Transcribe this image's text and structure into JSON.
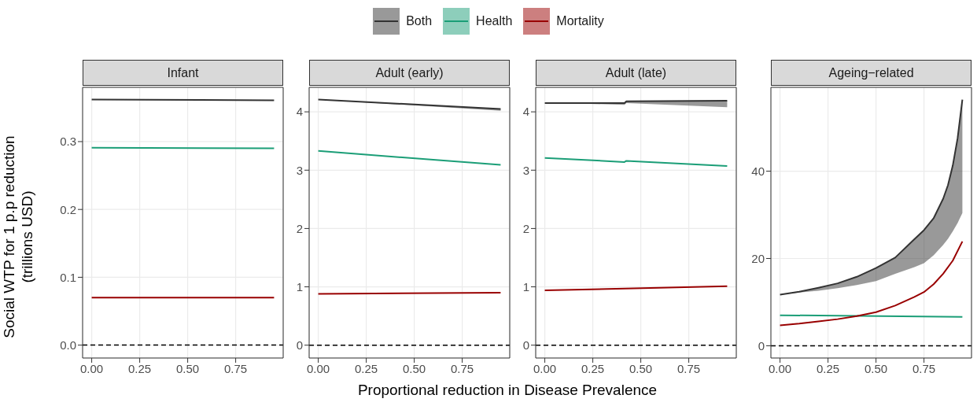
{
  "chart_data": [
    {
      "type": "line",
      "title": "Infant",
      "ylabel": "Social WTP for 1 p.p reduction\n(trillions USD)",
      "legend": "top",
      "grid": true,
      "xlim": [
        -0.0475,
        0.9975
      ],
      "xticks": [
        {
          "value": 0,
          "label": "0.00"
        },
        {
          "value": 0.25,
          "label": "0.25"
        },
        {
          "value": 0.5,
          "label": "0.50"
        },
        {
          "value": 0.75,
          "label": "0.75"
        }
      ],
      "ylim": [
        -0.019,
        0.38
      ],
      "yticks": [
        {
          "value": 0,
          "label": "0.0"
        },
        {
          "value": 0.1,
          "label": "0.1"
        },
        {
          "value": 0.2,
          "label": "0.2"
        },
        {
          "value": 0.3,
          "label": "0.3"
        }
      ],
      "ref_lines": [
        {
          "axis": "y",
          "value": 0,
          "color": "#000000",
          "line_style": "dashed"
        }
      ],
      "series": [
        {
          "name": "Both",
          "color": "#333333",
          "x": [
            0,
            0.95
          ],
          "values": [
            0.362,
            0.361
          ]
        },
        {
          "name": "Health",
          "color": "#1b9e77",
          "x": [
            0,
            0.95
          ],
          "values": [
            0.291,
            0.29
          ]
        },
        {
          "name": "Mortality",
          "color": "#990000",
          "x": [
            0,
            0.95
          ],
          "values": [
            0.07,
            0.07
          ]
        }
      ]
    },
    {
      "type": "line",
      "title": "Adult (early)",
      "xlabel": "Proportional reduction in Disease Prevalence",
      "grid": true,
      "xlim": [
        -0.0475,
        0.9975
      ],
      "xticks": [
        {
          "value": 0,
          "label": "0.00"
        },
        {
          "value": 0.25,
          "label": "0.25"
        },
        {
          "value": 0.5,
          "label": "0.50"
        },
        {
          "value": 0.75,
          "label": "0.75"
        }
      ],
      "ylim": [
        -0.22,
        4.42
      ],
      "yticks": [
        0,
        1,
        2,
        3,
        4
      ],
      "ref_lines": [
        {
          "axis": "y",
          "value": 0,
          "color": "#000000",
          "line_style": "dashed"
        }
      ],
      "series": [
        {
          "color": "#333333",
          "x": [
            0,
            0.95
          ],
          "values": [
            4.21,
            4.05
          ],
          "lower": [
            4.21,
            4.02
          ],
          "upper": [
            4.21,
            4.05
          ]
        },
        {
          "color": "#1b9e77",
          "x": [
            0,
            0.95
          ],
          "values": [
            3.33,
            3.09
          ]
        },
        {
          "color": "#990000",
          "x": [
            0,
            0.95
          ],
          "values": [
            0.88,
            0.9
          ]
        }
      ]
    },
    {
      "type": "line",
      "title": "Adult (late)",
      "grid": true,
      "xlim": [
        -0.0475,
        0.9975
      ],
      "xticks": [
        {
          "value": 0,
          "label": "0.00"
        },
        {
          "value": 0.25,
          "label": "0.25"
        },
        {
          "value": 0.5,
          "label": "0.50"
        },
        {
          "value": 0.75,
          "label": "0.75"
        }
      ],
      "ylim": [
        -0.22,
        4.42
      ],
      "yticks": [
        0,
        1,
        2,
        3,
        4
      ],
      "ref_lines": [
        {
          "axis": "y",
          "value": 0,
          "color": "#000000",
          "line_style": "dashed"
        }
      ],
      "series": [
        {
          "color": "#333333",
          "x": [
            0,
            0.2,
            0.415,
            0.425,
            0.95
          ],
          "values": [
            4.15,
            4.15,
            4.15,
            4.18,
            4.19
          ],
          "lower": [
            4.15,
            4.14,
            4.12,
            4.15,
            4.08
          ],
          "upper": [
            4.15,
            4.15,
            4.15,
            4.18,
            4.19
          ]
        },
        {
          "color": "#1b9e77",
          "x": [
            0,
            0.415,
            0.425,
            0.95
          ],
          "values": [
            3.21,
            3.14,
            3.16,
            3.07
          ]
        },
        {
          "color": "#990000",
          "x": [
            0,
            0.95
          ],
          "values": [
            0.94,
            1.01
          ]
        }
      ]
    },
    {
      "type": "line",
      "title": "Ageing−related",
      "grid": true,
      "xlim": [
        -0.0475,
        0.9975
      ],
      "xticks": [
        {
          "value": 0,
          "label": "0.00"
        },
        {
          "value": 0.25,
          "label": "0.25"
        },
        {
          "value": 0.5,
          "label": "0.50"
        },
        {
          "value": 0.75,
          "label": "0.75"
        }
      ],
      "ylim": [
        -2.8,
        59.2
      ],
      "yticks": [
        0,
        20,
        40
      ],
      "ref_lines": [
        {
          "axis": "y",
          "value": 0,
          "color": "#000000",
          "line_style": "dashed"
        }
      ],
      "series": [
        {
          "color": "#333333",
          "x": [
            0,
            0.1,
            0.2,
            0.3,
            0.4,
            0.5,
            0.6,
            0.7,
            0.75,
            0.8,
            0.85,
            0.875,
            0.9,
            0.925,
            0.95
          ],
          "values": [
            11.7,
            12.4,
            13.3,
            14.3,
            15.8,
            17.8,
            20.2,
            24.4,
            26.5,
            29.2,
            33.7,
            36.8,
            41.3,
            47.5,
            56.4
          ],
          "lower": [
            11.7,
            12.2,
            12.6,
            13.2,
            13.9,
            14.8,
            16.5,
            18,
            18.9,
            20.7,
            23.1,
            24.5,
            26.2,
            28.1,
            30.4
          ],
          "upper": [
            11.7,
            12.4,
            13.3,
            14.3,
            15.8,
            17.8,
            20.2,
            24.4,
            26.5,
            29.2,
            33.7,
            36.8,
            41.3,
            47.5,
            56.4
          ]
        },
        {
          "color": "#1b9e77",
          "x": [
            0,
            0.95
          ],
          "values": [
            7,
            6.6
          ]
        },
        {
          "color": "#990000",
          "x": [
            0,
            0.1,
            0.2,
            0.3,
            0.4,
            0.5,
            0.6,
            0.7,
            0.75,
            0.8,
            0.85,
            0.9,
            0.95
          ],
          "values": [
            4.7,
            5.1,
            5.6,
            6.1,
            6.8,
            7.7,
            9.2,
            11.2,
            12.3,
            14.1,
            16.5,
            19.5,
            23.9
          ]
        }
      ]
    }
  ]
}
